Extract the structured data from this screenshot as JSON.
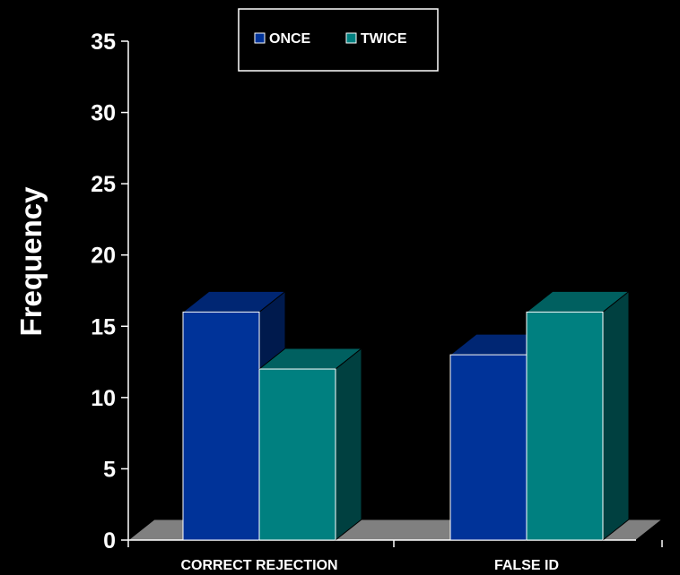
{
  "chart_data": {
    "type": "bar",
    "categories": [
      "CORRECT REJECTION",
      "FALSE ID"
    ],
    "series": [
      {
        "name": "ONCE",
        "values": [
          16,
          13
        ],
        "color": "#003399"
      },
      {
        "name": "TWICE",
        "values": [
          12,
          16
        ],
        "color": "#008080"
      }
    ],
    "title": "",
    "xlabel": "",
    "ylabel": "Frequency",
    "ylim": [
      0,
      35
    ],
    "yticks": [
      0,
      5,
      10,
      15,
      20,
      25,
      30,
      35
    ],
    "grid": false,
    "legend_position": "top-center",
    "style": "3d-bar",
    "background": "#000000",
    "floor_color": "#808080"
  }
}
